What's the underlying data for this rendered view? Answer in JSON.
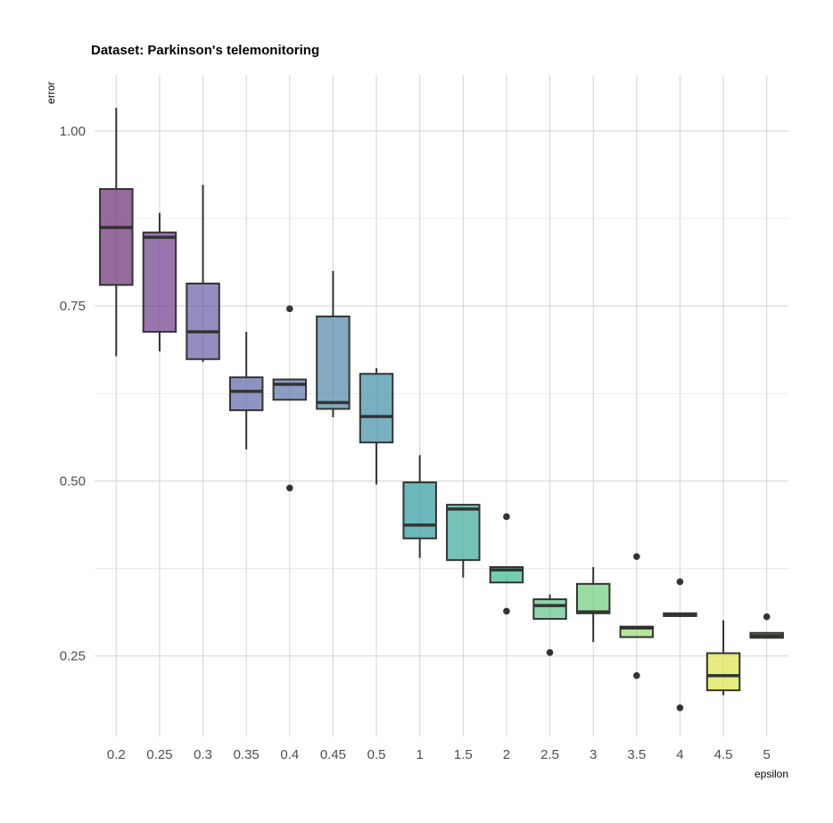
{
  "chart_data": {
    "type": "boxplot",
    "title": "Dataset: Parkinson's telemonitoring",
    "xlabel": "epsilon",
    "ylabel": "error",
    "ylim": [
      0.135,
      1.08
    ],
    "y_ticks": [
      0.25,
      0.5,
      0.75,
      1.0
    ],
    "y_tick_labels": [
      "0.25",
      "0.50",
      "0.75",
      "1.00"
    ],
    "grid": true,
    "legend": "none",
    "categories": [
      "0.2",
      "0.25",
      "0.3",
      "0.35",
      "0.4",
      "0.45",
      "0.5",
      "1",
      "1.5",
      "2",
      "2.5",
      "3",
      "3.5",
      "4",
      "4.5",
      "5"
    ],
    "colors": [
      "#6a2c70",
      "#6e3b8a",
      "#6a5ba5",
      "#5e67a8",
      "#5a73aa",
      "#4f86a8",
      "#3f8ea6",
      "#2f9a9e",
      "#3aa99a",
      "#3cb78e",
      "#5ec38a",
      "#6fce7c",
      "#94d86c",
      "#c0df5f",
      "#dce44a",
      "#e3e058"
    ],
    "boxes": [
      {
        "category": "0.2",
        "whisker_low": 0.678,
        "q1": 0.78,
        "median": 0.862,
        "q3": 0.917,
        "whisker_high": 1.033,
        "outliers": []
      },
      {
        "category": "0.25",
        "whisker_low": 0.685,
        "q1": 0.713,
        "median": 0.848,
        "q3": 0.855,
        "whisker_high": 0.883,
        "outliers": []
      },
      {
        "category": "0.3",
        "whisker_low": 0.67,
        "q1": 0.674,
        "median": 0.713,
        "q3": 0.782,
        "whisker_high": 0.923,
        "outliers": []
      },
      {
        "category": "0.35",
        "whisker_low": 0.545,
        "q1": 0.601,
        "median": 0.628,
        "q3": 0.648,
        "whisker_high": 0.713,
        "outliers": []
      },
      {
        "category": "0.4",
        "whisker_low": 0.616,
        "q1": 0.616,
        "median": 0.638,
        "q3": 0.645,
        "whisker_high": 0.645,
        "outliers": [
          0.746,
          0.49
        ]
      },
      {
        "category": "0.45",
        "whisker_low": 0.591,
        "q1": 0.603,
        "median": 0.612,
        "q3": 0.735,
        "whisker_high": 0.8,
        "outliers": []
      },
      {
        "category": "0.5",
        "whisker_low": 0.495,
        "q1": 0.555,
        "median": 0.592,
        "q3": 0.653,
        "whisker_high": 0.661,
        "outliers": []
      },
      {
        "category": "1",
        "whisker_low": 0.39,
        "q1": 0.418,
        "median": 0.437,
        "q3": 0.498,
        "whisker_high": 0.537,
        "outliers": []
      },
      {
        "category": "1.5",
        "whisker_low": 0.362,
        "q1": 0.387,
        "median": 0.46,
        "q3": 0.466,
        "whisker_high": 0.466,
        "outliers": []
      },
      {
        "category": "2",
        "whisker_low": 0.355,
        "q1": 0.355,
        "median": 0.373,
        "q3": 0.377,
        "whisker_high": 0.377,
        "outliers": [
          0.449,
          0.314
        ]
      },
      {
        "category": "2.5",
        "whisker_low": 0.303,
        "q1": 0.303,
        "median": 0.322,
        "q3": 0.331,
        "whisker_high": 0.338,
        "outliers": [
          0.255
        ]
      },
      {
        "category": "3",
        "whisker_low": 0.27,
        "q1": 0.311,
        "median": 0.313,
        "q3": 0.353,
        "whisker_high": 0.377,
        "outliers": []
      },
      {
        "category": "3.5",
        "whisker_low": 0.277,
        "q1": 0.277,
        "median": 0.29,
        "q3": 0.292,
        "whisker_high": 0.292,
        "outliers": [
          0.392,
          0.222
        ]
      },
      {
        "category": "4",
        "whisker_low": 0.307,
        "q1": 0.307,
        "median": 0.309,
        "q3": 0.311,
        "whisker_high": 0.311,
        "outliers": [
          0.356,
          0.176
        ]
      },
      {
        "category": "4.5",
        "whisker_low": 0.194,
        "q1": 0.201,
        "median": 0.222,
        "q3": 0.254,
        "whisker_high": 0.301,
        "outliers": []
      },
      {
        "category": "5",
        "whisker_low": 0.276,
        "q1": 0.276,
        "median": 0.279,
        "q3": 0.283,
        "whisker_high": 0.283,
        "outliers": [
          0.306
        ]
      }
    ]
  }
}
